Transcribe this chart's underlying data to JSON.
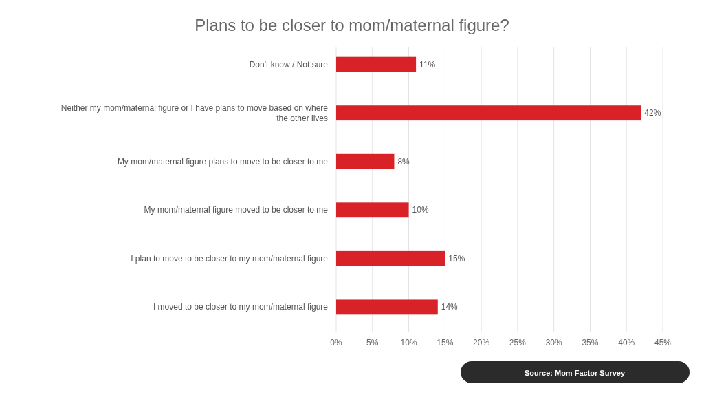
{
  "chart_data": {
    "type": "bar",
    "orientation": "horizontal",
    "title": "Plans to be closer to mom/maternal figure?",
    "categories": [
      "Don't know / Not sure",
      "Neither my mom/maternal figure or I have plans to move based on where the other lives",
      "My mom/maternal figure plans to move to be closer to me",
      "My mom/maternal figure moved to be closer to me",
      "I plan to move to be closer to my mom/maternal figure",
      "I moved to be closer to my mom/maternal figure"
    ],
    "values": [
      11,
      42,
      8,
      10,
      15,
      14
    ],
    "value_labels": [
      "11%",
      "42%",
      "8%",
      "10%",
      "15%",
      "14%"
    ],
    "color": "#d92228",
    "xlim": [
      0,
      45
    ],
    "xticks": [
      {
        "value": 0,
        "label": "0%"
      },
      {
        "value": 5,
        "label": "5%"
      },
      {
        "value": 10,
        "label": "10%"
      },
      {
        "value": 15,
        "label": "15%"
      },
      {
        "value": 20,
        "label": "20%"
      },
      {
        "value": 25,
        "label": "25%"
      },
      {
        "value": 30,
        "label": "30%"
      },
      {
        "value": 35,
        "label": "35%"
      },
      {
        "value": 40,
        "label": "40%"
      },
      {
        "value": 45,
        "label": "45%"
      }
    ],
    "grid": "x",
    "annotations": [
      "Source: Mom Factor Survey"
    ]
  }
}
